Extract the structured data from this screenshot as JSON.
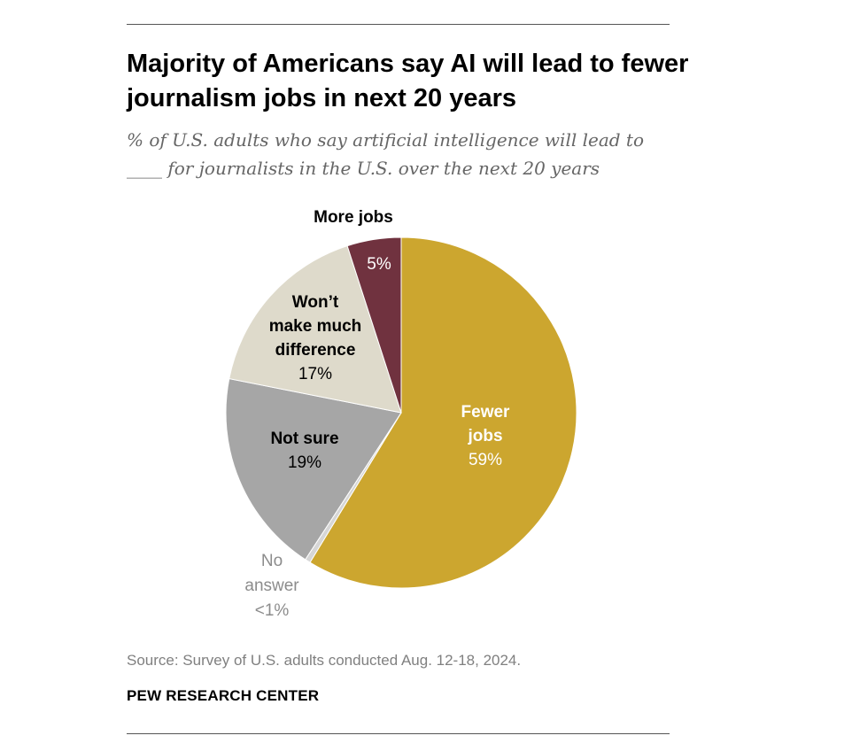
{
  "header": {
    "title": "Majority of Americans say AI will lead to fewer journalism jobs in next 20 years",
    "subtitle": "% of U.S. adults who say artificial intelligence will lead to ____ for journalists in the U.S. over the next 20 years"
  },
  "chart_data": {
    "type": "pie",
    "title": "Majority of Americans say AI will lead to fewer journalism jobs in next 20 years",
    "start_angle": "12 o'clock",
    "direction": "clockwise",
    "slices": [
      {
        "name": "Fewer jobs",
        "label_lines": [
          "Fewer",
          "jobs"
        ],
        "value": 59,
        "value_label": "59%",
        "color": "#CCA62F"
      },
      {
        "name": "No answer",
        "label_lines": [
          "No",
          "answer"
        ],
        "value": 0.5,
        "value_label": "<1%",
        "color": "#D6D6D6"
      },
      {
        "name": "Not sure",
        "label_lines": [
          "Not sure"
        ],
        "value": 19,
        "value_label": "19%",
        "color": "#A6A6A6"
      },
      {
        "name": "Won't make much difference",
        "label_lines": [
          "Won’t",
          "make much",
          "difference"
        ],
        "value": 17,
        "value_label": "17%",
        "color": "#DEDACB"
      },
      {
        "name": "More jobs",
        "label_lines": [
          "More jobs"
        ],
        "value": 5,
        "value_label": "5%",
        "color": "#70323F"
      }
    ]
  },
  "footer": {
    "source": "Source: Survey of U.S. adults conducted Aug. 12-18, 2024.",
    "org": "PEW RESEARCH CENTER"
  }
}
